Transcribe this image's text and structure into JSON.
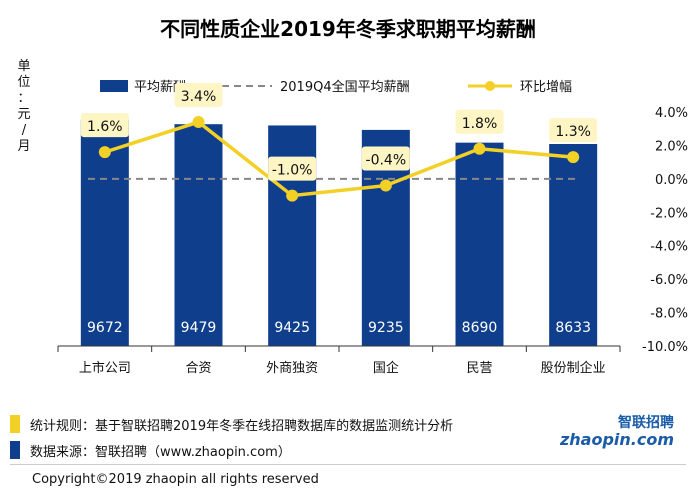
{
  "chart_data": {
    "type": "bar",
    "title": "不同性质企业2019年冬季求职期平均薪酬",
    "ylabel": "单位：元/月",
    "categories": [
      "上市公司",
      "合资",
      "外商独资",
      "国企",
      "民营",
      "股份制企业"
    ],
    "series": [
      {
        "name": "平均薪酬",
        "type": "bar",
        "axis": "left",
        "values": [
          9672,
          9479,
          9425,
          9235,
          8690,
          8633
        ]
      },
      {
        "name": "环比增幅",
        "type": "line",
        "axis": "right",
        "values": [
          1.6,
          3.4,
          -1.0,
          -0.4,
          1.8,
          1.3
        ],
        "labels": [
          "1.6%",
          "3.4%",
          "-1.0%",
          "-0.4%",
          "1.8%",
          "1.3%"
        ]
      }
    ],
    "reference_line": {
      "name": "2019Q4全国平均薪酬",
      "value": 0.0
    },
    "y_right": {
      "range": [
        -10,
        4
      ],
      "ticks": [
        4,
        2,
        0,
        -2,
        -4,
        -6,
        -8,
        -10
      ],
      "tick_labels": [
        "4.0%",
        "2.0%",
        "0.0%",
        "-2.0%",
        "-4.0%",
        "-6.0%",
        "-8.0%",
        "-10.0%"
      ]
    },
    "y_left_range": [
      0,
      10000
    ],
    "legend": [
      {
        "name": "平均薪酬",
        "marker": "bar"
      },
      {
        "name": "2019Q4全国平均薪酬",
        "marker": "dashed-line"
      },
      {
        "name": "环比增幅",
        "marker": "line-dot"
      }
    ],
    "legend_position": "top",
    "colors": {
      "bar": "#0f3f8c",
      "line": "#f2d025",
      "label_bg": "#fdf5c4",
      "reference": "#888888"
    }
  },
  "footer": {
    "note_rule": "统计规则：基于智联招聘2019年冬季在线招聘数据库的数据监测统计分析",
    "note_source": "数据来源：智联招聘（www.zhaopin.com）",
    "copyright": "Copyright©2019 zhaopin all rights reserved",
    "logo_cn": "智联招聘",
    "logo_en": "zhaopin.com",
    "swatch_rule": "#f2d025",
    "swatch_source": "#0f3f8c"
  }
}
